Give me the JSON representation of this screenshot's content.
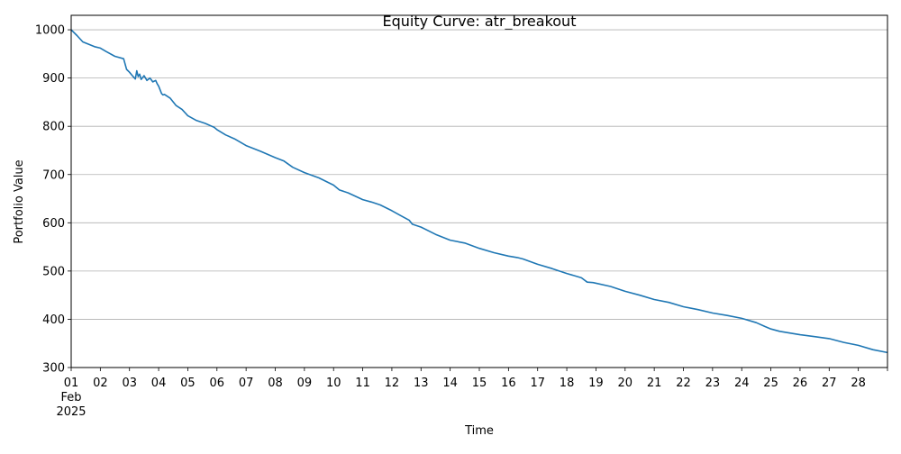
{
  "chart_data": {
    "type": "line",
    "title": "Equity Curve: atr_breakout",
    "xlabel": "Time",
    "ylabel": "Portfolio Value",
    "ylim": [
      300,
      1030
    ],
    "y_ticks": [
      300,
      400,
      500,
      600,
      700,
      800,
      900,
      1000
    ],
    "x_range_days": [
      1,
      29
    ],
    "x_ticks": [
      "01",
      "02",
      "03",
      "04",
      "05",
      "06",
      "07",
      "08",
      "09",
      "10",
      "11",
      "12",
      "13",
      "14",
      "15",
      "16",
      "17",
      "18",
      "19",
      "20",
      "21",
      "22",
      "23",
      "24",
      "25",
      "26",
      "27",
      "28"
    ],
    "x_tick_sub": [
      "Feb",
      "2025"
    ],
    "grid": "horizontal",
    "line_color": "#1f77b4",
    "series": [
      {
        "x": [
          1.0,
          1.2,
          1.4,
          1.6,
          1.8,
          2.0,
          2.2,
          2.5,
          2.8,
          2.9,
          3.0,
          3.1,
          3.2,
          3.25,
          3.3,
          3.35,
          3.4,
          3.5,
          3.6,
          3.7,
          3.8,
          3.9,
          3.95,
          4.0,
          4.1,
          4.15,
          4.2,
          4.4,
          4.6,
          4.8,
          5.0,
          5.3,
          5.6,
          5.9,
          6.0,
          6.3,
          6.6,
          7.0,
          7.5,
          8.0,
          8.3,
          8.6,
          9.0,
          9.5,
          10.0,
          10.2,
          10.5,
          11.0,
          11.3,
          11.6,
          12.0,
          12.3,
          12.6,
          12.7,
          13.0,
          13.5,
          14.0,
          14.5,
          15.0,
          15.5,
          16.0,
          16.3,
          16.5,
          17.0,
          17.5,
          18.0,
          18.5,
          18.7,
          18.9,
          19.5,
          20.0,
          20.5,
          21.0,
          21.5,
          22.0,
          22.5,
          23.0,
          23.5,
          24.0,
          24.5,
          24.8,
          25.0,
          25.3,
          25.6,
          26.0,
          26.5,
          27.0,
          27.5,
          28.0,
          28.5,
          29.0
        ],
        "y": [
          1000,
          988,
          975,
          970,
          965,
          962,
          955,
          945,
          940,
          918,
          912,
          905,
          898,
          915,
          903,
          908,
          897,
          905,
          895,
          900,
          892,
          895,
          888,
          883,
          868,
          865,
          866,
          858,
          843,
          835,
          822,
          812,
          806,
          798,
          793,
          782,
          774,
          760,
          748,
          735,
          728,
          715,
          704,
          693,
          678,
          668,
          662,
          648,
          643,
          637,
          625,
          615,
          605,
          597,
          591,
          576,
          564,
          558,
          547,
          538,
          531,
          528,
          525,
          514,
          505,
          495,
          486,
          477,
          476,
          468,
          458,
          450,
          441,
          435,
          426,
          420,
          413,
          408,
          402,
          393,
          385,
          380,
          375,
          372,
          368,
          364,
          360,
          352,
          346,
          337,
          331
        ]
      }
    ]
  }
}
